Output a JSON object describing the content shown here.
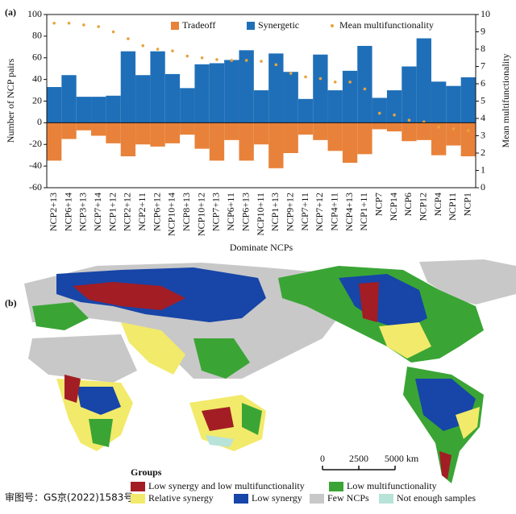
{
  "chart_data": {
    "type": "bar",
    "panel": "(a)",
    "ylabel": "Number of NCP pairs",
    "y2label": "Mean multifunctionality",
    "xlabel": "Dominate NCPs",
    "categories": [
      "NCP2+13",
      "NCP6+14",
      "NCP3+13",
      "NCP7+14",
      "NCP1+12",
      "NCP2+12",
      "NCP2+11",
      "NCP6+12",
      "NCP10+14",
      "NCP8+13",
      "NCP10+12",
      "NCP7+13",
      "NCP6+11",
      "NCP6+13",
      "NCP10+11",
      "NCP1+13",
      "NCP9+12",
      "NCP7+11",
      "NCP7+12",
      "NCP4+11",
      "NCP4+13",
      "NCP1+11",
      "NCP7",
      "NCP14",
      "NCP6",
      "NCP12",
      "NCP4",
      "NCP11",
      "NCP1"
    ],
    "series": [
      {
        "name": "Tradeoff",
        "color": "#e8823a",
        "values": [
          -35,
          -15,
          -7,
          -12,
          -19,
          -31,
          -20,
          -22,
          -19,
          -11,
          -24,
          -35,
          -16,
          -35,
          -20,
          -42,
          -28,
          -11,
          -16,
          -26,
          -37,
          -29,
          -6,
          -8,
          -17,
          -16,
          -30,
          -21,
          -31
        ]
      },
      {
        "name": "Synergetic",
        "color": "#1f6fb8",
        "values": [
          33,
          44,
          24,
          24,
          25,
          66,
          44,
          66,
          45,
          32,
          54,
          55,
          58,
          67,
          30,
          64,
          47,
          22,
          63,
          30,
          48,
          71,
          23,
          30,
          52,
          78,
          38,
          34,
          42
        ]
      },
      {
        "name": "Mean multifunctionality",
        "color": "#e8a33d",
        "axis": "y2",
        "style": "points",
        "values": [
          9.5,
          9.5,
          9.4,
          9.3,
          9.0,
          8.6,
          8.2,
          8.0,
          7.9,
          7.6,
          7.5,
          7.4,
          7.35,
          7.35,
          7.3,
          7.1,
          6.6,
          6.4,
          6.3,
          6.1,
          6.1,
          5.7,
          4.3,
          4.2,
          3.9,
          3.8,
          3.5,
          3.4,
          3.3
        ]
      }
    ],
    "ylim": [
      -60,
      100
    ],
    "yticks": [
      -60,
      -40,
      -20,
      0,
      20,
      40,
      60,
      80,
      100
    ],
    "y2lim": [
      0,
      10
    ],
    "y2ticks": [
      0,
      1,
      2,
      3,
      4,
      5,
      6,
      7,
      8,
      9,
      10
    ],
    "legend": "top",
    "grid": false
  },
  "map": {
    "panel": "(b)",
    "legend_title": "Groups",
    "groups": [
      {
        "label": "Low synergy and low multifunctionality",
        "color": "#a31d24"
      },
      {
        "label": "Low multifunctionality",
        "color": "#3aa535"
      },
      {
        "label": "Relative synergy",
        "color": "#f2ea6a"
      },
      {
        "label": "Low synergy",
        "color": "#1745a8"
      },
      {
        "label": "Few NCPs",
        "color": "#c8c8c8"
      },
      {
        "label": "Not enough samples",
        "color": "#b7e3d8"
      }
    ],
    "scale_labels": [
      "0",
      "2500",
      "5000 km"
    ],
    "approval": "审图号：GS京(2022)1583号"
  }
}
